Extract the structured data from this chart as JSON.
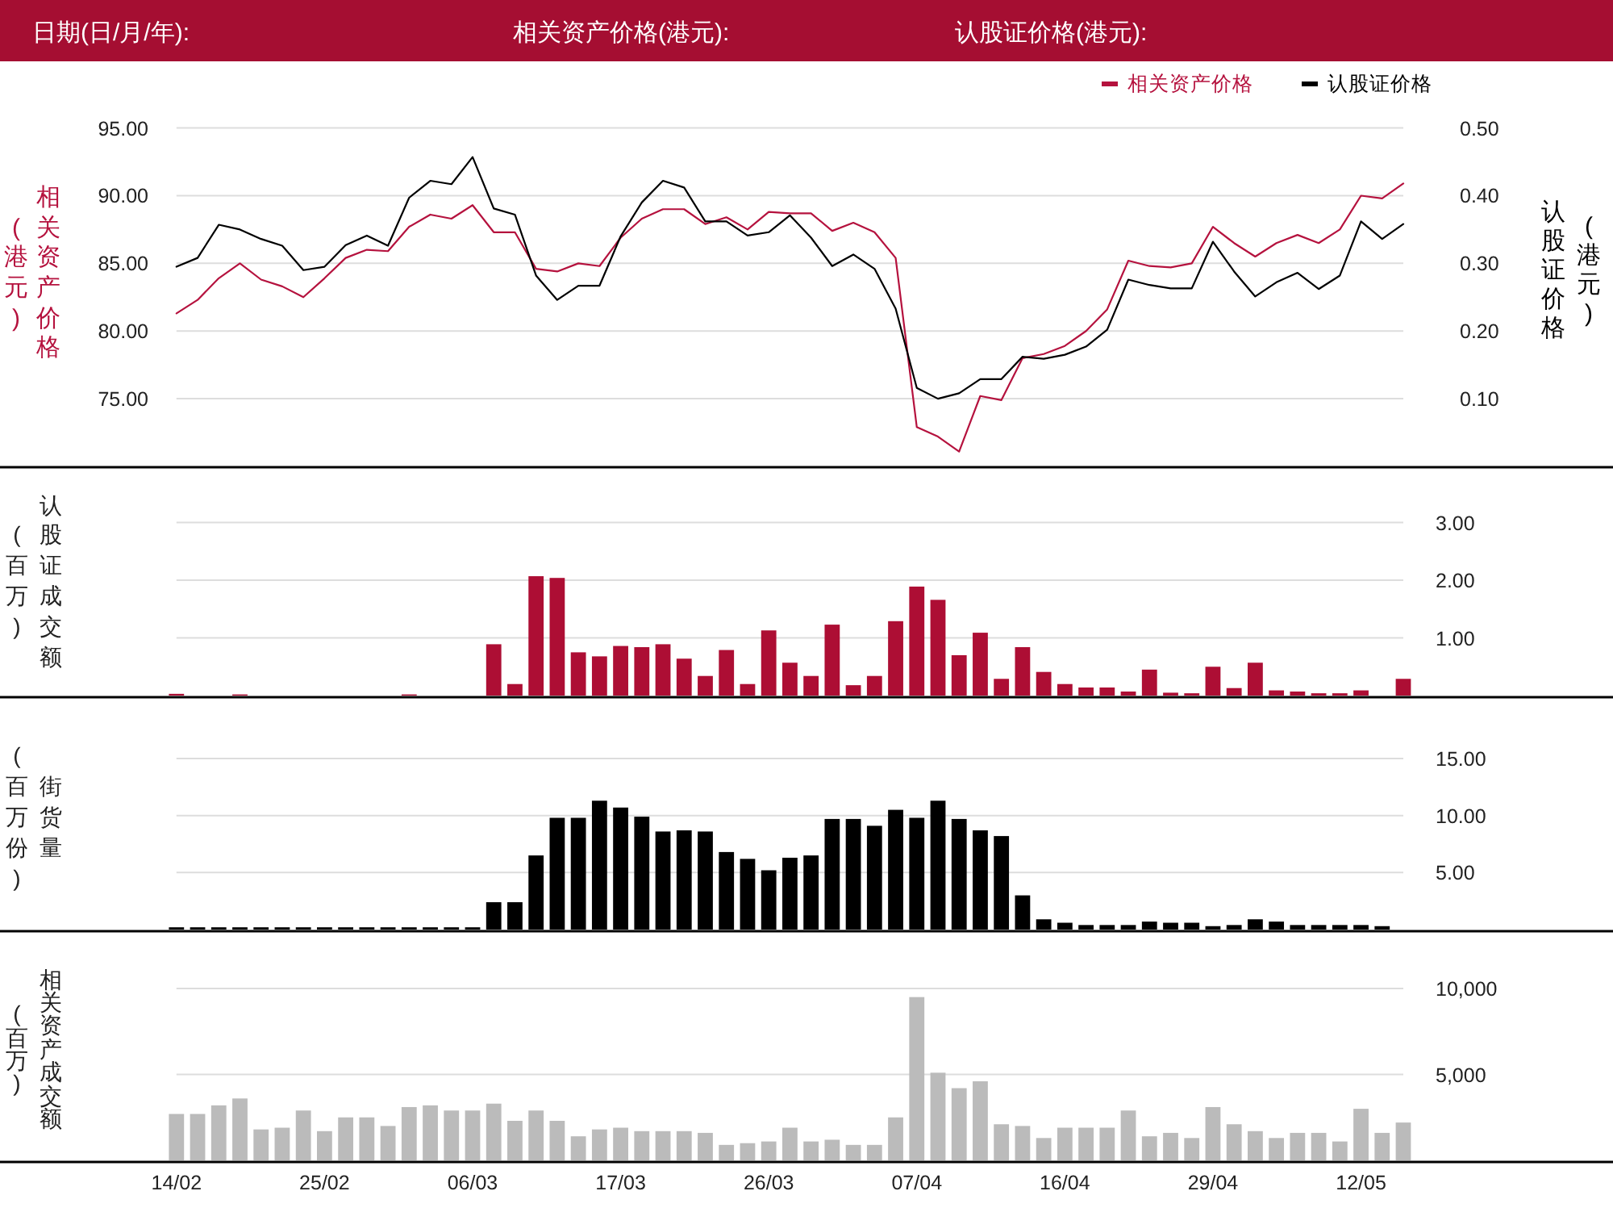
{
  "chart_data": [
    {
      "type": "other",
      "annotations": [
        "日期(日/月/年):",
        "相关资产价格(港元):",
        "认股证价格(港元):"
      ]
    },
    {
      "type": "line",
      "categories": [
        null,
        null,
        null,
        null,
        null,
        null,
        null,
        null,
        null,
        null,
        null,
        null,
        null,
        null,
        null,
        null,
        null,
        null,
        null,
        null,
        null,
        null,
        null,
        null,
        null,
        null,
        null,
        null,
        null,
        null,
        null,
        null,
        null,
        null,
        null,
        null,
        null,
        null,
        null,
        null,
        null,
        null,
        null,
        null,
        null,
        null,
        null,
        null,
        null,
        null,
        null,
        null,
        null,
        null,
        null,
        null,
        null,
        null,
        null
      ],
      "series": [
        {
          "name": "相关资产价格",
          "color": "#b5123e",
          "values": [
            81.3,
            82.3,
            83.9,
            85.0,
            83.8,
            83.3,
            82.5,
            83.9,
            85.4,
            86.0,
            85.9,
            87.7,
            88.6,
            88.3,
            89.3,
            87.3,
            87.3,
            84.6,
            84.4,
            85.0,
            84.8,
            86.9,
            88.3,
            89.0,
            89.0,
            87.9,
            88.4,
            87.5,
            88.8,
            88.7,
            88.7,
            87.4,
            88.0,
            87.3,
            85.4,
            72.9,
            72.2,
            71.1,
            75.2,
            74.9,
            78.0,
            78.3,
            78.9,
            80.0,
            81.6,
            85.2,
            84.8,
            84.7,
            85.0,
            87.7,
            86.5,
            85.5,
            86.5,
            87.1,
            86.5,
            87.5,
            90.0,
            89.8,
            90.9
          ]
        },
        {
          "name": "认股证价格",
          "color": "#000000",
          "axis": "y2",
          "values": [
            0.295,
            0.308,
            0.357,
            0.35,
            0.336,
            0.326,
            0.29,
            0.295,
            0.327,
            0.341,
            0.326,
            0.397,
            0.422,
            0.417,
            0.457,
            0.381,
            0.372,
            0.282,
            0.246,
            0.267,
            0.267,
            0.34,
            0.39,
            0.422,
            0.412,
            0.362,
            0.362,
            0.341,
            0.346,
            0.371,
            0.338,
            0.296,
            0.313,
            0.292,
            0.233,
            0.116,
            0.1,
            0.108,
            0.129,
            0.129,
            0.162,
            0.159,
            0.165,
            0.177,
            0.202,
            0.276,
            0.268,
            0.263,
            0.263,
            0.332,
            0.288,
            0.251,
            0.272,
            0.286,
            0.262,
            0.282,
            0.362,
            0.336,
            0.358
          ]
        }
      ],
      "ylim": [
        70,
        95
      ],
      "yticks": [
        {
          "value": 75,
          "label": "75.00"
        },
        {
          "value": 80,
          "label": "80.00"
        },
        {
          "value": 85,
          "label": "85.00"
        },
        {
          "value": 90,
          "label": "90.00"
        },
        {
          "value": 95,
          "label": "95.00"
        }
      ],
      "y2lim": [
        0,
        0.5
      ],
      "y2ticks": [
        {
          "value": 0.1,
          "label": "0.10"
        },
        {
          "value": 0.2,
          "label": "0.20"
        },
        {
          "value": 0.3,
          "label": "0.30"
        },
        {
          "value": 0.4,
          "label": "0.40"
        },
        {
          "value": 0.5,
          "label": "0.50"
        }
      ],
      "ylabel": "相关资产价格(港元)",
      "y2label": "认股证价格(港元)",
      "grid": "y",
      "legend": "top right",
      "tick_labels": "y"
    },
    {
      "type": "bar",
      "categories": [
        null,
        null,
        null,
        null,
        null,
        null,
        null,
        null,
        null,
        null,
        null,
        null,
        null,
        null,
        null,
        null,
        null,
        null,
        null,
        null,
        null,
        null,
        null,
        null,
        null,
        null,
        null,
        null,
        null,
        null,
        null,
        null,
        null,
        null,
        null,
        null,
        null,
        null,
        null,
        null,
        null,
        null,
        null,
        null,
        null,
        null,
        null,
        null,
        null,
        null,
        null,
        null,
        null,
        null,
        null,
        null,
        null,
        null,
        null
      ],
      "color": "#ad0e34",
      "values": [
        0.03,
        0,
        0,
        0.02,
        0,
        0,
        0,
        0,
        0,
        0,
        0,
        0.02,
        0,
        0,
        0,
        0.89,
        0.2,
        2.07,
        2.04,
        0.75,
        0.68,
        0.86,
        0.84,
        0.89,
        0.64,
        0.34,
        0.79,
        0.2,
        1.13,
        0.57,
        0.34,
        1.23,
        0.18,
        0.34,
        1.29,
        1.89,
        1.66,
        0.7,
        1.09,
        0.29,
        0.84,
        0.41,
        0.2,
        0.14,
        0.14,
        0.07,
        0.45,
        0.05,
        0.04,
        0.5,
        0.13,
        0.57,
        0.09,
        0.07,
        0.04,
        0.04,
        0.09,
        0,
        0.29
      ],
      "ylim": [
        0,
        3
      ],
      "yticks": [
        {
          "value": 1,
          "label": "1.00"
        },
        {
          "value": 2,
          "label": "2.00"
        },
        {
          "value": 3,
          "label": "3.00"
        }
      ],
      "ylabel": "认股证成交额(百万)",
      "grid": "y",
      "tick_labels": "y"
    },
    {
      "type": "bar",
      "categories": [
        null,
        null,
        null,
        null,
        null,
        null,
        null,
        null,
        null,
        null,
        null,
        null,
        null,
        null,
        null,
        null,
        null,
        null,
        null,
        null,
        null,
        null,
        null,
        null,
        null,
        null,
        null,
        null,
        null,
        null,
        null,
        null,
        null,
        null,
        null,
        null,
        null,
        null,
        null,
        null,
        null,
        null,
        null,
        null,
        null,
        null,
        null,
        null,
        null,
        null,
        null,
        null,
        null,
        null,
        null,
        null,
        null,
        null,
        null
      ],
      "color": "#000000",
      "values": [
        0.2,
        0.2,
        0.2,
        0.2,
        0.2,
        0.2,
        0.2,
        0.2,
        0.2,
        0.2,
        0.2,
        0.2,
        0.2,
        0.2,
        0.2,
        2.4,
        2.4,
        6.5,
        9.8,
        9.8,
        11.3,
        10.7,
        9.9,
        8.6,
        8.7,
        8.6,
        6.8,
        6.2,
        5.2,
        6.3,
        6.5,
        9.7,
        9.7,
        9.1,
        10.5,
        9.8,
        11.3,
        9.7,
        8.7,
        8.2,
        3.0,
        0.9,
        0.6,
        0.4,
        0.4,
        0.4,
        0.7,
        0.6,
        0.6,
        0.3,
        0.4,
        0.9,
        0.7,
        0.4,
        0.4,
        0.4,
        0.4,
        0.3,
        null
      ],
      "ylim": [
        0,
        15
      ],
      "yticks": [
        {
          "value": 5,
          "label": "5.00"
        },
        {
          "value": 10,
          "label": "10.00"
        },
        {
          "value": 15,
          "label": "15.00"
        }
      ],
      "ylabel": "街货量(百万份)",
      "grid": "y",
      "tick_labels": "y"
    },
    {
      "type": "bar",
      "categories": [
        "14/02",
        null,
        null,
        null,
        null,
        null,
        null,
        "25/02",
        null,
        null,
        null,
        null,
        null,
        null,
        "06/03",
        null,
        null,
        null,
        null,
        null,
        null,
        "17/03",
        null,
        null,
        null,
        null,
        null,
        null,
        "26/03",
        null,
        null,
        null,
        null,
        null,
        null,
        "07/04",
        null,
        null,
        null,
        null,
        null,
        null,
        "16/04",
        null,
        null,
        null,
        null,
        null,
        null,
        "29/04",
        null,
        null,
        null,
        null,
        null,
        null,
        "12/05",
        null,
        null
      ],
      "color": "#bbbbbb",
      "values": [
        2700,
        2700,
        3200,
        3600,
        1800,
        1900,
        2900,
        1700,
        2500,
        2500,
        2000,
        3100,
        3200,
        2900,
        2900,
        3300,
        2300,
        2900,
        2300,
        1400,
        1800,
        1900,
        1700,
        1700,
        1700,
        1600,
        900,
        1000,
        1100,
        1900,
        1100,
        1200,
        900,
        900,
        2500,
        9500,
        5100,
        4200,
        4600,
        2100,
        2000,
        1300,
        1900,
        1900,
        1900,
        2900,
        1400,
        1600,
        1300,
        3100,
        2100,
        1700,
        1300,
        1600,
        1600,
        1100,
        3000,
        1600,
        2200
      ],
      "ylim": [
        0,
        10000
      ],
      "yticks": [
        {
          "value": 5000,
          "label": "5,000"
        },
        {
          "value": 10000,
          "label": "10,000"
        }
      ],
      "ylabel": "相关资产成交额(百万)",
      "grid": "y"
    }
  ]
}
